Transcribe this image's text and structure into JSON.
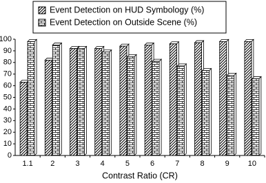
{
  "chart_data": {
    "type": "bar",
    "x_label": "Contrast Ratio (CR)",
    "categories": [
      "1.1",
      "2",
      "3",
      "4",
      "5",
      "6",
      "7",
      "8",
      "9",
      "10"
    ],
    "series": [
      {
        "name": "Event Detection on HUD Symbology (%)",
        "color": "#000000",
        "pattern": "hatch",
        "values": [
          63,
          82,
          92,
          92,
          94,
          95,
          96,
          97,
          98,
          98
        ]
      },
      {
        "name": "Event Detection on Outside Scene (%)",
        "color": "#000000",
        "pattern": "brick",
        "values": [
          98,
          95,
          92,
          89,
          85,
          81,
          77,
          73,
          69,
          66
        ]
      }
    ],
    "ylim": [
      0,
      100
    ],
    "yticks": [
      0,
      10,
      20,
      30,
      40,
      50,
      60,
      70,
      80,
      90,
      100
    ],
    "grid": false,
    "legend": "top"
  }
}
